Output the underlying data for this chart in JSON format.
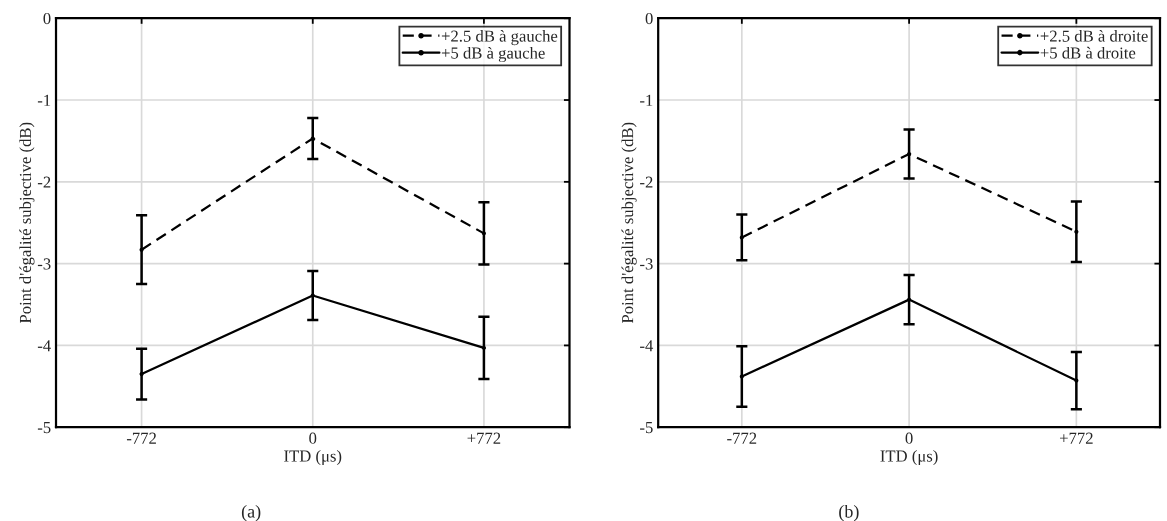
{
  "chart_data": [
    {
      "type": "line",
      "xlabel": "ITD (μs)",
      "ylabel": "Point d'égalité subjective (dB)",
      "x": [
        -772,
        0,
        772
      ],
      "xlim": [
        -1158,
        1158
      ],
      "xticks": [
        -772,
        0,
        {
          "value": 772,
          "label": "+772"
        }
      ],
      "ylim": [
        -5,
        0
      ],
      "yticks": [
        -5,
        -4,
        -3,
        -2,
        -1,
        0
      ],
      "grid": true,
      "legend": "top right",
      "marker": "circle",
      "annotations": [
        "(a)"
      ],
      "series": [
        {
          "name": "+2.5 dB à gauche",
          "color": "#000000",
          "line_style": "dashed",
          "values": [
            -2.83,
            -1.47,
            -2.63
          ],
          "errors": [
            0.42,
            0.25,
            0.38
          ]
        },
        {
          "name": "+5 dB à gauche",
          "color": "#000000",
          "line_style": "solid",
          "values": [
            -4.35,
            -3.39,
            -4.03
          ],
          "errors": [
            0.31,
            0.3,
            0.38
          ]
        }
      ]
    },
    {
      "type": "line",
      "xlabel": "ITD (μs)",
      "ylabel": "Point d'égalité subjective (dB)",
      "x": [
        -772,
        0,
        772
      ],
      "xlim": [
        -1158,
        1158
      ],
      "xticks": [
        -772,
        0,
        {
          "value": 772,
          "label": "+772"
        }
      ],
      "ylim": [
        -5,
        0
      ],
      "yticks": [
        -5,
        -4,
        -3,
        -2,
        -1,
        0
      ],
      "grid": true,
      "legend": "top right",
      "marker": "circle",
      "annotations": [
        "(b)"
      ],
      "series": [
        {
          "name": "+2.5 dB à droite",
          "color": "#000000",
          "line_style": "dashed",
          "values": [
            -2.68,
            -1.66,
            -2.61
          ],
          "errors": [
            0.28,
            0.3,
            0.37
          ]
        },
        {
          "name": "+5 dB à droite",
          "color": "#000000",
          "line_style": "solid",
          "values": [
            -4.38,
            -3.44,
            -4.43
          ],
          "errors": [
            0.37,
            0.3,
            0.35
          ]
        }
      ]
    }
  ]
}
